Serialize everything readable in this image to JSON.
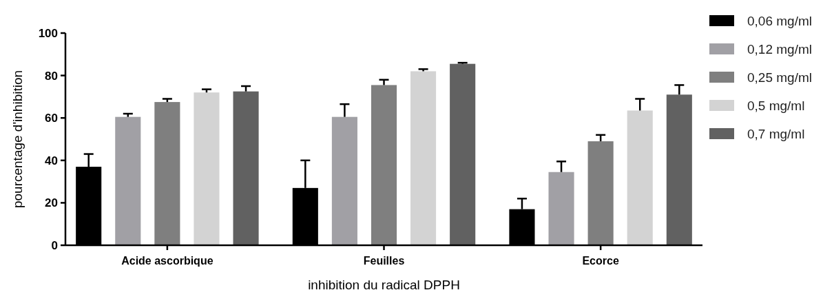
{
  "chart_data": {
    "type": "bar",
    "xlabel": "inhibition du radical DPPH",
    "ylabel": "pourcentage d'inhibition",
    "categories": [
      "Acide ascorbique",
      "Feuilles",
      "Ecorce"
    ],
    "series": [
      {
        "name": "0,06 mg/ml",
        "color": "#000000",
        "values": [
          37,
          27,
          17
        ],
        "errors": [
          [
            37,
            43
          ],
          [
            27,
            40
          ],
          [
            17,
            22
          ]
        ]
      },
      {
        "name": "0,12 mg/ml",
        "color": "#a1a0a5",
        "values": [
          60.5,
          60.5,
          34.5
        ],
        "errors": [
          [
            60.5,
            62
          ],
          [
            60.5,
            66.5
          ],
          [
            34.5,
            39.5
          ]
        ]
      },
      {
        "name": "0,25 mg/ml",
        "color": "#7f7f7f",
        "values": [
          67.5,
          75.5,
          49
        ],
        "errors": [
          [
            67.5,
            69
          ],
          [
            75.5,
            78
          ],
          [
            49,
            52
          ]
        ]
      },
      {
        "name": "0,5 mg/ml",
        "color": "#d3d3d3",
        "values": [
          72,
          82,
          63.5
        ],
        "errors": [
          [
            72,
            73.5
          ],
          [
            82,
            83
          ],
          [
            63.5,
            69
          ]
        ]
      },
      {
        "name": "0,7 mg/ml",
        "color": "#616161",
        "values": [
          72.5,
          85.5,
          71
        ],
        "errors": [
          [
            72.5,
            75
          ],
          [
            85.5,
            86
          ],
          [
            71,
            75.5
          ]
        ]
      }
    ],
    "ylim": [
      0,
      100
    ],
    "yticks": [
      0,
      20,
      40,
      60,
      80,
      100
    ],
    "grid": false,
    "legend": "top right"
  }
}
